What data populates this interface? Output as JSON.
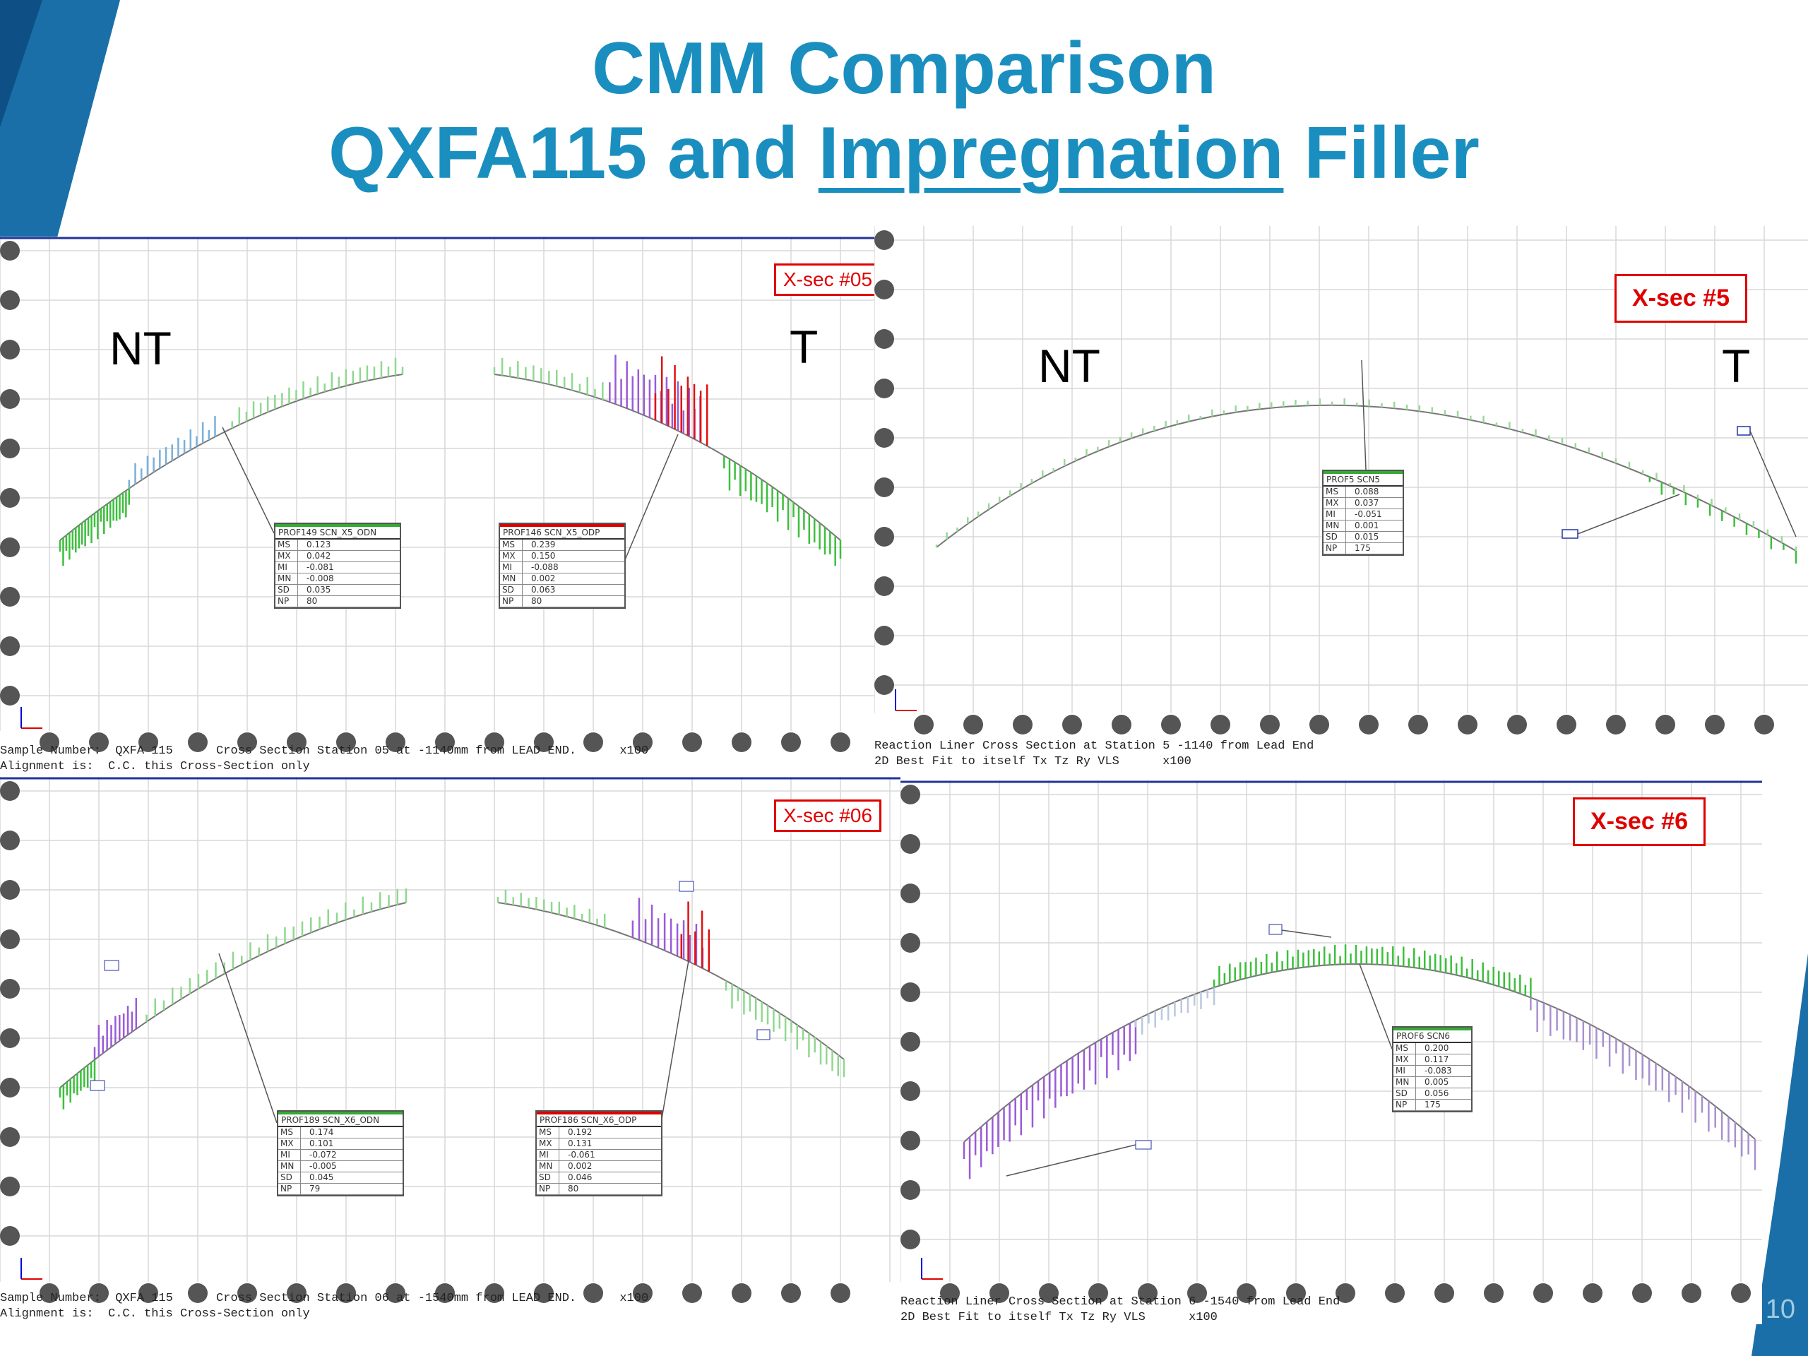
{
  "title": {
    "line1": "CMM Comparison",
    "line2_prefix": "QXFA115 and ",
    "line2_underlined": "Impregnation",
    "line2_suffix": " Filler"
  },
  "panels": [
    {
      "xsec_label": "X-sec #05",
      "nt_label": "NT",
      "t_label": "T",
      "caption_line1": "Sample Number:  QXFA 115      Cross Section Station 05 at -1140mm from LEAD END.      x100",
      "caption_line2": "Alignment is:  C.C. this Cross-Section only",
      "stats_left": {
        "header": "PROF149 SCN_X5_ODN",
        "rows": [
          [
            "MS",
            "0.123"
          ],
          [
            "MX",
            "0.042"
          ],
          [
            "MI",
            "-0.081"
          ],
          [
            "MN",
            "-0.008"
          ],
          [
            "SD",
            "0.035"
          ],
          [
            "NP",
            "80"
          ]
        ]
      },
      "stats_right": {
        "header": "PROF146 SCN_X5_ODP",
        "rows": [
          [
            "MS",
            "0.239"
          ],
          [
            "MX",
            "0.150"
          ],
          [
            "MI",
            "-0.088"
          ],
          [
            "MN",
            "0.002"
          ],
          [
            "SD",
            "0.063"
          ],
          [
            "NP",
            "80"
          ]
        ]
      }
    },
    {
      "xsec_label": "X-sec #5",
      "nt_label": "NT",
      "t_label": "T",
      "caption_line1": "Reaction Liner Cross Section at Station 5 -1140 from Lead End",
      "caption_line2": "2D Best Fit to itself Tx Tz Ry VLS      x100",
      "stats": {
        "header": "PROF5 SCN5",
        "rows": [
          [
            "MS",
            "0.088"
          ],
          [
            "MX",
            "0.037"
          ],
          [
            "MI",
            "-0.051"
          ],
          [
            "MN",
            "0.001"
          ],
          [
            "SD",
            "0.015"
          ],
          [
            "NP",
            "175"
          ]
        ]
      }
    },
    {
      "xsec_label": "X-sec #06",
      "caption_line1": "Sample Number:  QXFA 115      Cross Section Station 06 at -1540mm from LEAD END.      x100",
      "caption_line2": "Alignment is:  C.C. this Cross-Section only",
      "stats_left": {
        "header": "PROF189 SCN_X6_ODN",
        "rows": [
          [
            "MS",
            "0.174"
          ],
          [
            "MX",
            "0.101"
          ],
          [
            "MI",
            "-0.072"
          ],
          [
            "MN",
            "-0.005"
          ],
          [
            "SD",
            "0.045"
          ],
          [
            "NP",
            "79"
          ]
        ]
      },
      "stats_right": {
        "header": "PROF186 SCN_X6_ODP",
        "rows": [
          [
            "MS",
            "0.192"
          ],
          [
            "MX",
            "0.131"
          ],
          [
            "MI",
            "-0.061"
          ],
          [
            "MN",
            "0.002"
          ],
          [
            "SD",
            "0.046"
          ],
          [
            "NP",
            "80"
          ]
        ]
      }
    },
    {
      "xsec_label": "X-sec #6",
      "caption_line1": "Reaction Liner Cross Section at Station 6 -1540 from Lead End",
      "caption_line2": "2D Best Fit to itself Tx Tz Ry VLS      x100",
      "stats": {
        "header": "PROF6 SCN6",
        "rows": [
          [
            "MS",
            "0.200"
          ],
          [
            "MX",
            "0.117"
          ],
          [
            "MI",
            "-0.083"
          ],
          [
            "MN",
            "0.005"
          ],
          [
            "SD",
            "0.056"
          ],
          [
            "NP",
            "175"
          ]
        ]
      }
    }
  ],
  "page_number": "10",
  "colors": {
    "title": "#1a8fbf",
    "xsec_border": "#e00000",
    "deviation_green": "#3cbf3c",
    "deviation_purple": "#8a4fd0",
    "deviation_red": "#e01010"
  }
}
